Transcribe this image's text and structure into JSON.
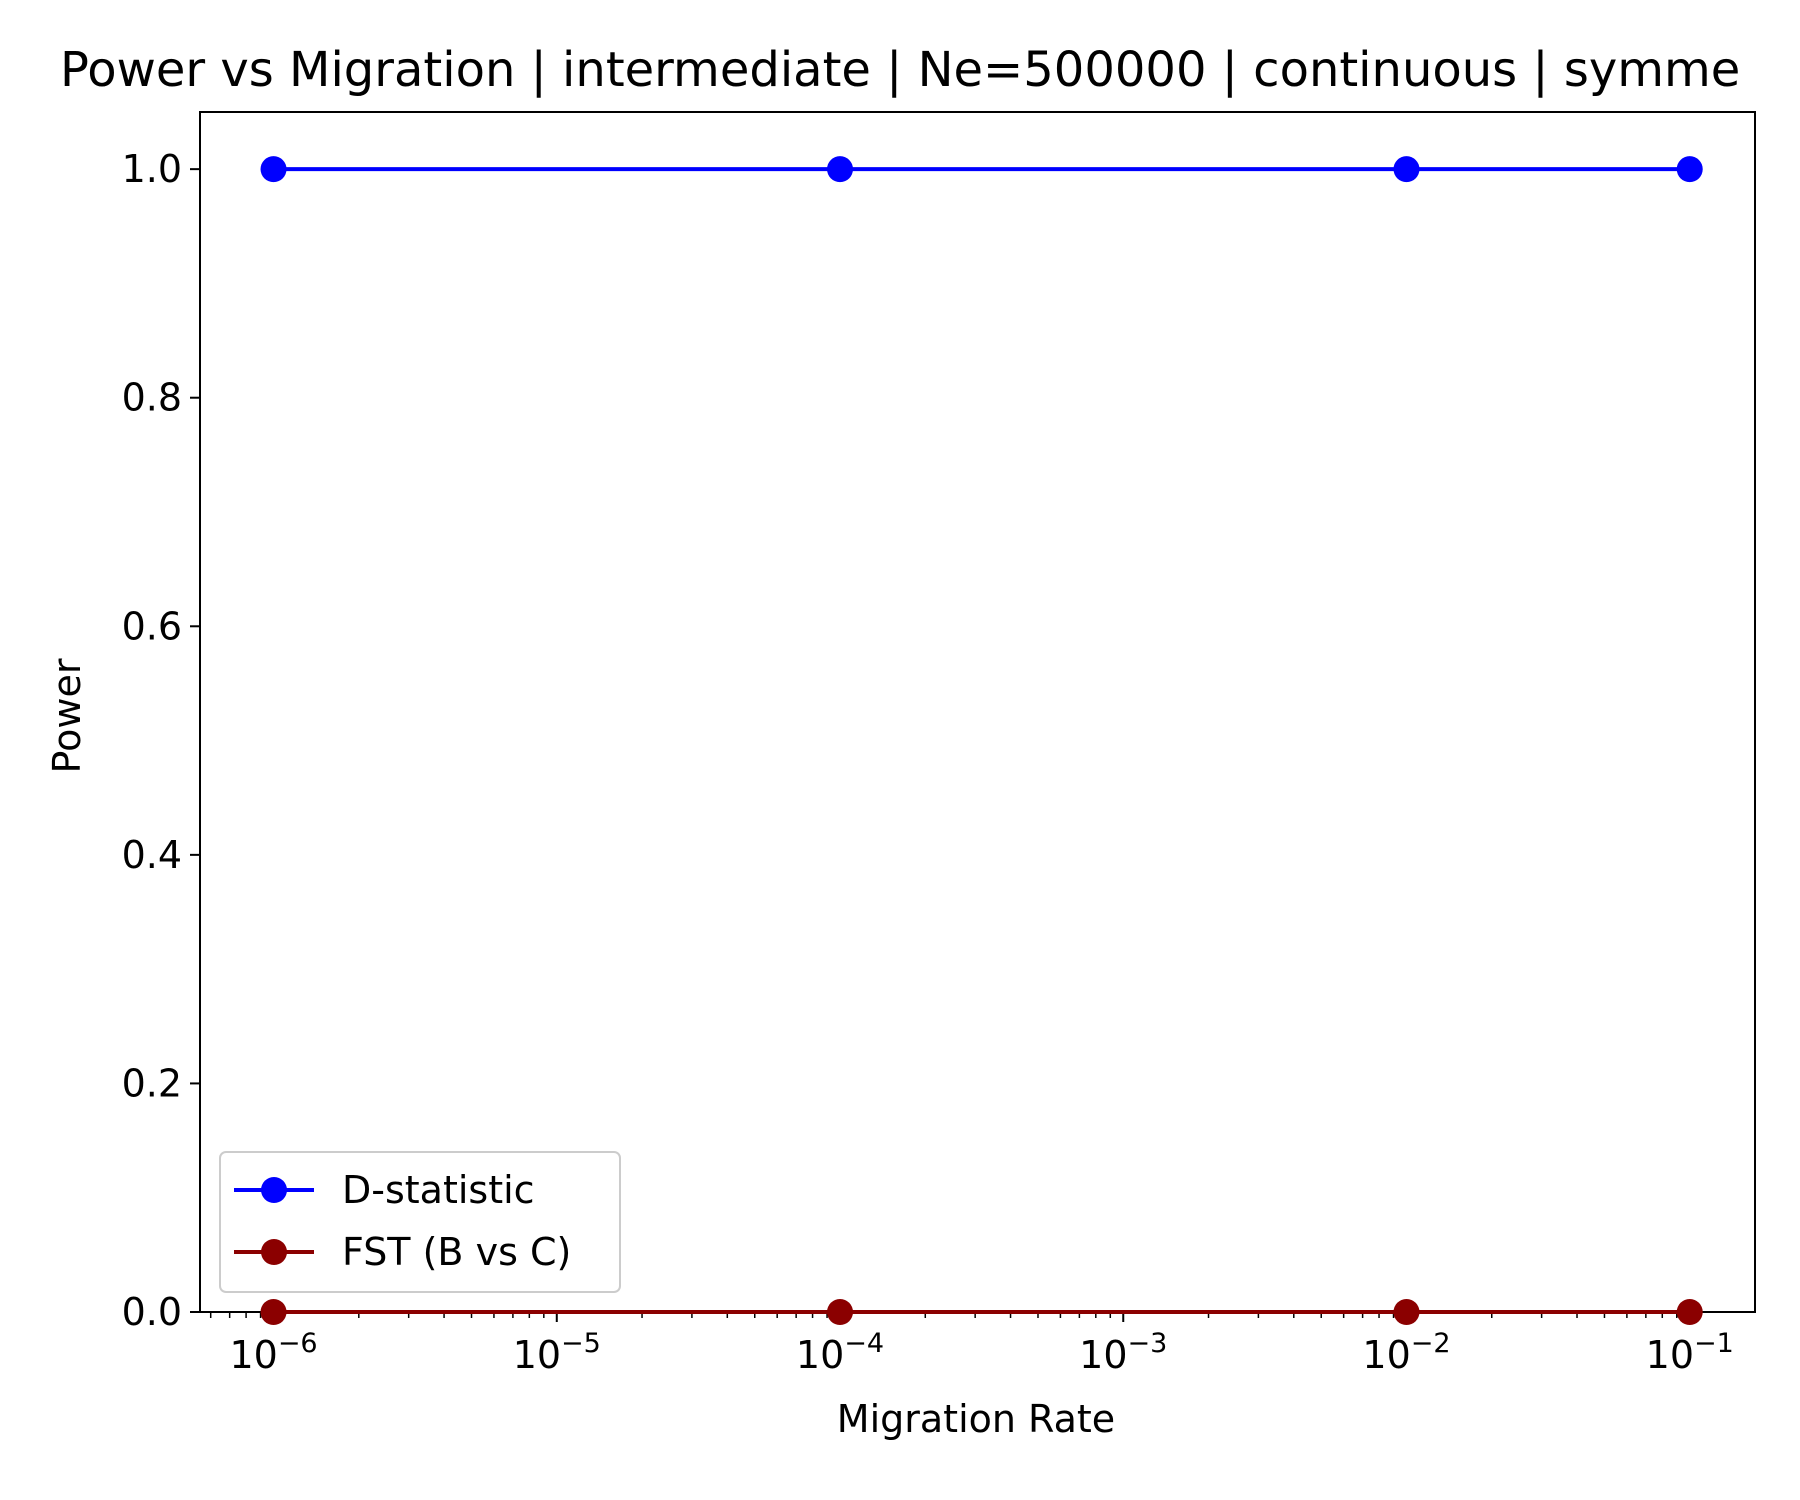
{
  "chart_data": {
    "type": "line",
    "title": "Power vs Migration | intermediate | Ne=500000 | continuous | symme",
    "xlabel": "Migration Rate",
    "ylabel": "Power",
    "xscale": "log",
    "xlim": [
      5.5e-07,
      0.17
    ],
    "ylim": [
      0,
      1.05
    ],
    "grid": false,
    "legend_position": "lower left",
    "x": [
      1e-06,
      0.0001,
      0.01,
      0.1
    ],
    "series": [
      {
        "name": "D-statistic",
        "color": "#0000ff",
        "marker": "circle",
        "values": [
          1.0,
          1.0,
          1.0,
          1.0
        ]
      },
      {
        "name": "FST (B vs C)",
        "color": "#8b0000",
        "marker": "circle",
        "values": [
          0.0,
          0.0,
          0.0,
          0.0
        ]
      }
    ],
    "y_ticks": [
      {
        "value": 0.0,
        "label": "0.0"
      },
      {
        "value": 0.2,
        "label": "0.2"
      },
      {
        "value": 0.4,
        "label": "0.4"
      },
      {
        "value": 0.6,
        "label": "0.6"
      },
      {
        "value": 0.8,
        "label": "0.8"
      },
      {
        "value": 1.0,
        "label": "1.0"
      }
    ],
    "x_ticks": [
      {
        "value": 1e-06,
        "base": "10",
        "exponent": "−6"
      },
      {
        "value": 1e-05,
        "base": "10",
        "exponent": "−5"
      },
      {
        "value": 0.0001,
        "base": "10",
        "exponent": "−4"
      },
      {
        "value": 0.001,
        "base": "10",
        "exponent": "−3"
      },
      {
        "value": 0.01,
        "base": "10",
        "exponent": "−2"
      },
      {
        "value": 0.1,
        "base": "10",
        "exponent": "−1"
      }
    ]
  }
}
